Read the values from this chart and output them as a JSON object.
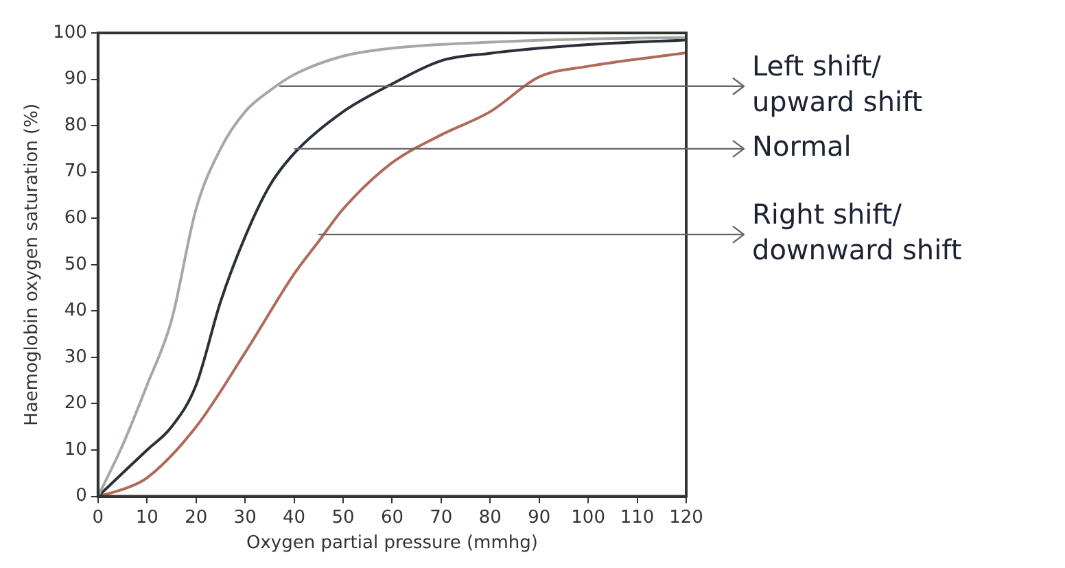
{
  "chart_data": {
    "type": "line",
    "xlabel": "Oxygen partial pressure (mmhg)",
    "ylabel": "Haemoglobin oxygen saturation (%)",
    "xlim": [
      0,
      120
    ],
    "ylim": [
      0,
      100
    ],
    "xticks": [
      0,
      10,
      20,
      30,
      40,
      50,
      60,
      70,
      80,
      90,
      100,
      110,
      120
    ],
    "yticks": [
      0,
      10,
      20,
      30,
      40,
      50,
      60,
      70,
      80,
      90,
      100
    ],
    "grid": false,
    "legend": false,
    "marker": "none",
    "line_style": "solid",
    "series": [
      {
        "color": "#a3aaa2",
        "x": [
          0,
          5,
          10,
          15,
          20,
          25,
          30,
          35,
          40,
          50,
          60,
          80,
          100,
          120
        ],
        "values": [
          0,
          11,
          24,
          38,
          62,
          75,
          83,
          87.5,
          91,
          95,
          96.7,
          98,
          98.7,
          99
        ]
      },
      {
        "color": "#2a2f3a",
        "x": [
          0,
          5,
          10,
          15,
          20,
          25,
          30,
          35,
          40,
          50,
          60,
          70,
          80,
          90,
          100,
          120
        ],
        "values": [
          0,
          5,
          10,
          15,
          24,
          42,
          56,
          67,
          74,
          83,
          89,
          94,
          95.6,
          96.7,
          97.5,
          98.5
        ]
      },
      {
        "color": "#b06a5a",
        "x": [
          0,
          5,
          10,
          20,
          30,
          40,
          45,
          50,
          60,
          70,
          80,
          90,
          100,
          120
        ],
        "values": [
          0,
          1.5,
          4,
          15,
          31,
          48,
          55,
          62,
          72,
          78,
          83,
          90.5,
          92.8,
          95.7
        ]
      }
    ],
    "annotations": [
      {
        "text": "Left shift/ upward shift",
        "x": 37,
        "y": 88.5
      },
      {
        "text": "Normal",
        "x": 40,
        "y": 75
      },
      {
        "text": "Right shift/ downward shift",
        "x": 45,
        "y": 56.5
      }
    ]
  }
}
